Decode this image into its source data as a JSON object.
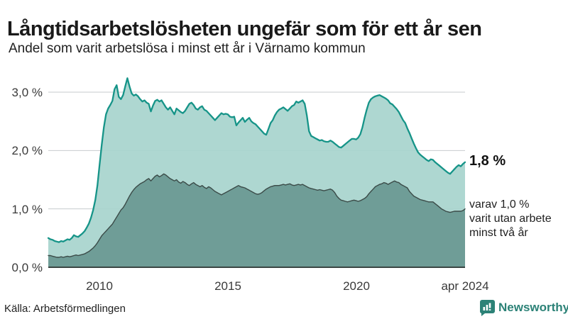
{
  "header": {
    "title": "Långtidsarbetslösheten ungefär som för ett år sen",
    "subtitle": "Andel som varit arbetslösa i minst ett år i Värnamo kommun"
  },
  "annotations": {
    "end_value_label": "1,8 %",
    "sub_value_label": "varav 1,0 %\nvarit utan arbete\nminst två år"
  },
  "footer": {
    "source": "Källa: Arbetsförmedlingen",
    "brand": "Newsworthy",
    "brand_icon": "newsworthy-pin-barchart-icon"
  },
  "colors": {
    "title_text": "#1a1a1a",
    "teal_line": "#169488",
    "light_fill": "#a8d4cd",
    "dark_fill": "#6f9d97",
    "dark_line": "#3b4b48",
    "gridline": "#c7cbce",
    "axis_line": "#3a4543",
    "brand_teal": "#2c8277"
  },
  "chart_data": {
    "type": "area",
    "title": "Långtidsarbetslösheten ungefär som för ett år sen",
    "subtitle": "Andel som varit arbetslösa i minst ett år i Värnamo kommun",
    "frequency": "monthly",
    "x_start": "2008-01",
    "x_end": "2024-04",
    "ylim": [
      0,
      3.3
    ],
    "grid": "horizontal",
    "legend_position": "right-annotations",
    "y_ticks": [
      {
        "value": 0,
        "label": "0,0 %"
      },
      {
        "value": 1,
        "label": "1,0 %"
      },
      {
        "value": 2,
        "label": "2,0 %"
      },
      {
        "value": 3,
        "label": "3,0 %"
      }
    ],
    "x_ticks": [
      {
        "index": 24,
        "label": "2010"
      },
      {
        "index": 84,
        "label": "2015"
      },
      {
        "index": 144,
        "label": "2020"
      },
      {
        "index": 195,
        "label": "apr 2024"
      }
    ],
    "series": [
      {
        "name": "Arbetslösa minst ett år",
        "end_value": 1.8,
        "end_label": "1,8 %",
        "fill": "#a8d4cd",
        "fill_opacity": 0.93,
        "line": "#169488",
        "line_width": 2.3,
        "values": [
          0.5,
          0.48,
          0.47,
          0.45,
          0.44,
          0.43,
          0.45,
          0.44,
          0.46,
          0.48,
          0.47,
          0.5,
          0.55,
          0.53,
          0.52,
          0.55,
          0.58,
          0.62,
          0.68,
          0.75,
          0.85,
          0.98,
          1.15,
          1.4,
          1.75,
          2.1,
          2.4,
          2.62,
          2.72,
          2.78,
          2.85,
          3.05,
          3.12,
          2.92,
          2.88,
          2.95,
          3.1,
          3.24,
          3.1,
          2.98,
          2.94,
          2.96,
          2.93,
          2.88,
          2.84,
          2.86,
          2.82,
          2.8,
          2.67,
          2.77,
          2.85,
          2.87,
          2.84,
          2.86,
          2.8,
          2.74,
          2.7,
          2.74,
          2.68,
          2.62,
          2.72,
          2.69,
          2.66,
          2.64,
          2.68,
          2.74,
          2.8,
          2.82,
          2.78,
          2.72,
          2.7,
          2.74,
          2.76,
          2.7,
          2.68,
          2.64,
          2.6,
          2.56,
          2.52,
          2.56,
          2.6,
          2.64,
          2.62,
          2.63,
          2.62,
          2.58,
          2.57,
          2.58,
          2.43,
          2.48,
          2.52,
          2.56,
          2.49,
          2.53,
          2.56,
          2.5,
          2.47,
          2.45,
          2.41,
          2.37,
          2.33,
          2.29,
          2.27,
          2.37,
          2.47,
          2.52,
          2.6,
          2.66,
          2.7,
          2.72,
          2.74,
          2.71,
          2.68,
          2.72,
          2.76,
          2.78,
          2.84,
          2.82,
          2.84,
          2.86,
          2.8,
          2.6,
          2.33,
          2.25,
          2.23,
          2.21,
          2.19,
          2.17,
          2.18,
          2.16,
          2.15,
          2.15,
          2.17,
          2.15,
          2.12,
          2.09,
          2.06,
          2.05,
          2.08,
          2.11,
          2.14,
          2.17,
          2.2,
          2.2,
          2.19,
          2.22,
          2.28,
          2.4,
          2.56,
          2.7,
          2.82,
          2.88,
          2.91,
          2.93,
          2.94,
          2.95,
          2.93,
          2.91,
          2.89,
          2.86,
          2.81,
          2.79,
          2.75,
          2.71,
          2.66,
          2.59,
          2.52,
          2.47,
          2.38,
          2.3,
          2.21,
          2.12,
          2.04,
          1.97,
          1.93,
          1.9,
          1.87,
          1.84,
          1.82,
          1.85,
          1.84,
          1.8,
          1.77,
          1.74,
          1.71,
          1.68,
          1.65,
          1.62,
          1.6,
          1.64,
          1.68,
          1.72,
          1.75,
          1.73,
          1.77,
          1.8
        ]
      },
      {
        "name": "varav utan arbete minst två år",
        "end_value": 1.0,
        "end_label": "varav 1,0 %",
        "fill": "#6f9d97",
        "fill_opacity": 1,
        "line": "#3b4b48",
        "line_width": 1.4,
        "values": [
          0.2,
          0.2,
          0.19,
          0.18,
          0.17,
          0.17,
          0.18,
          0.17,
          0.18,
          0.19,
          0.18,
          0.19,
          0.2,
          0.21,
          0.2,
          0.21,
          0.22,
          0.23,
          0.25,
          0.27,
          0.3,
          0.33,
          0.37,
          0.42,
          0.48,
          0.54,
          0.58,
          0.62,
          0.66,
          0.7,
          0.74,
          0.8,
          0.86,
          0.92,
          0.98,
          1.02,
          1.08,
          1.15,
          1.22,
          1.28,
          1.33,
          1.37,
          1.4,
          1.43,
          1.45,
          1.47,
          1.5,
          1.52,
          1.48,
          1.52,
          1.56,
          1.58,
          1.55,
          1.57,
          1.6,
          1.58,
          1.55,
          1.52,
          1.5,
          1.48,
          1.5,
          1.46,
          1.44,
          1.47,
          1.45,
          1.42,
          1.4,
          1.43,
          1.45,
          1.42,
          1.4,
          1.38,
          1.4,
          1.37,
          1.35,
          1.38,
          1.36,
          1.33,
          1.3,
          1.28,
          1.26,
          1.24,
          1.26,
          1.28,
          1.3,
          1.32,
          1.34,
          1.36,
          1.38,
          1.4,
          1.38,
          1.37,
          1.36,
          1.34,
          1.32,
          1.3,
          1.28,
          1.26,
          1.25,
          1.26,
          1.28,
          1.31,
          1.34,
          1.36,
          1.38,
          1.39,
          1.4,
          1.4,
          1.4,
          1.41,
          1.42,
          1.41,
          1.42,
          1.43,
          1.41,
          1.4,
          1.41,
          1.42,
          1.41,
          1.42,
          1.4,
          1.38,
          1.36,
          1.35,
          1.34,
          1.33,
          1.32,
          1.33,
          1.32,
          1.31,
          1.32,
          1.33,
          1.34,
          1.32,
          1.28,
          1.22,
          1.18,
          1.15,
          1.14,
          1.13,
          1.12,
          1.13,
          1.14,
          1.15,
          1.14,
          1.13,
          1.14,
          1.16,
          1.18,
          1.21,
          1.26,
          1.3,
          1.34,
          1.38,
          1.4,
          1.42,
          1.43,
          1.45,
          1.44,
          1.42,
          1.44,
          1.46,
          1.48,
          1.46,
          1.45,
          1.42,
          1.4,
          1.38,
          1.36,
          1.3,
          1.26,
          1.22,
          1.2,
          1.18,
          1.16,
          1.15,
          1.14,
          1.13,
          1.12,
          1.12,
          1.12,
          1.09,
          1.06,
          1.03,
          1.0,
          0.98,
          0.96,
          0.95,
          0.94,
          0.95,
          0.96,
          0.96,
          0.96,
          0.96,
          0.97,
          1.0
        ]
      }
    ]
  }
}
